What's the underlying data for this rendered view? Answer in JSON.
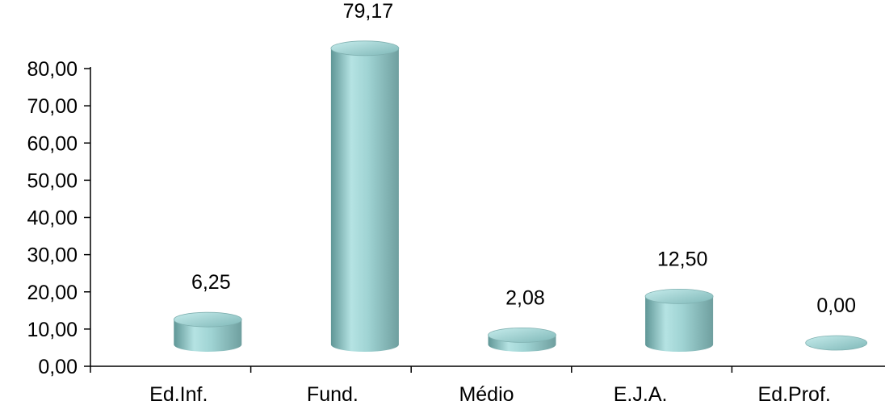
{
  "chart_data": {
    "type": "bar",
    "title": "",
    "xlabel": "",
    "ylabel": "",
    "categories": [
      "Ed.Inf.",
      "Fund.",
      "Médio",
      "E.J.A.",
      "Ed.Prof."
    ],
    "values": [
      6.25,
      79.17,
      2.08,
      12.5,
      0.0
    ],
    "value_labels": [
      "6,25",
      "79,17",
      "2,08",
      "12,50",
      "0,00"
    ],
    "ylim": [
      0,
      80
    ],
    "yticks": [
      0,
      10,
      20,
      30,
      40,
      50,
      60,
      70,
      80
    ],
    "ytick_labels": [
      "0,00",
      "10,00",
      "20,00",
      "30,00",
      "40,00",
      "50,00",
      "60,00",
      "70,00",
      "80,00"
    ],
    "grid": false,
    "legend": "none",
    "style": "3d-cylinder",
    "colors": {
      "bar_dark": "#5f9696",
      "bar_mid": "#a9dcdc",
      "bar_light": "#ddf4f4",
      "bar_top": "#8cc5c5",
      "axis": "#000000"
    }
  }
}
